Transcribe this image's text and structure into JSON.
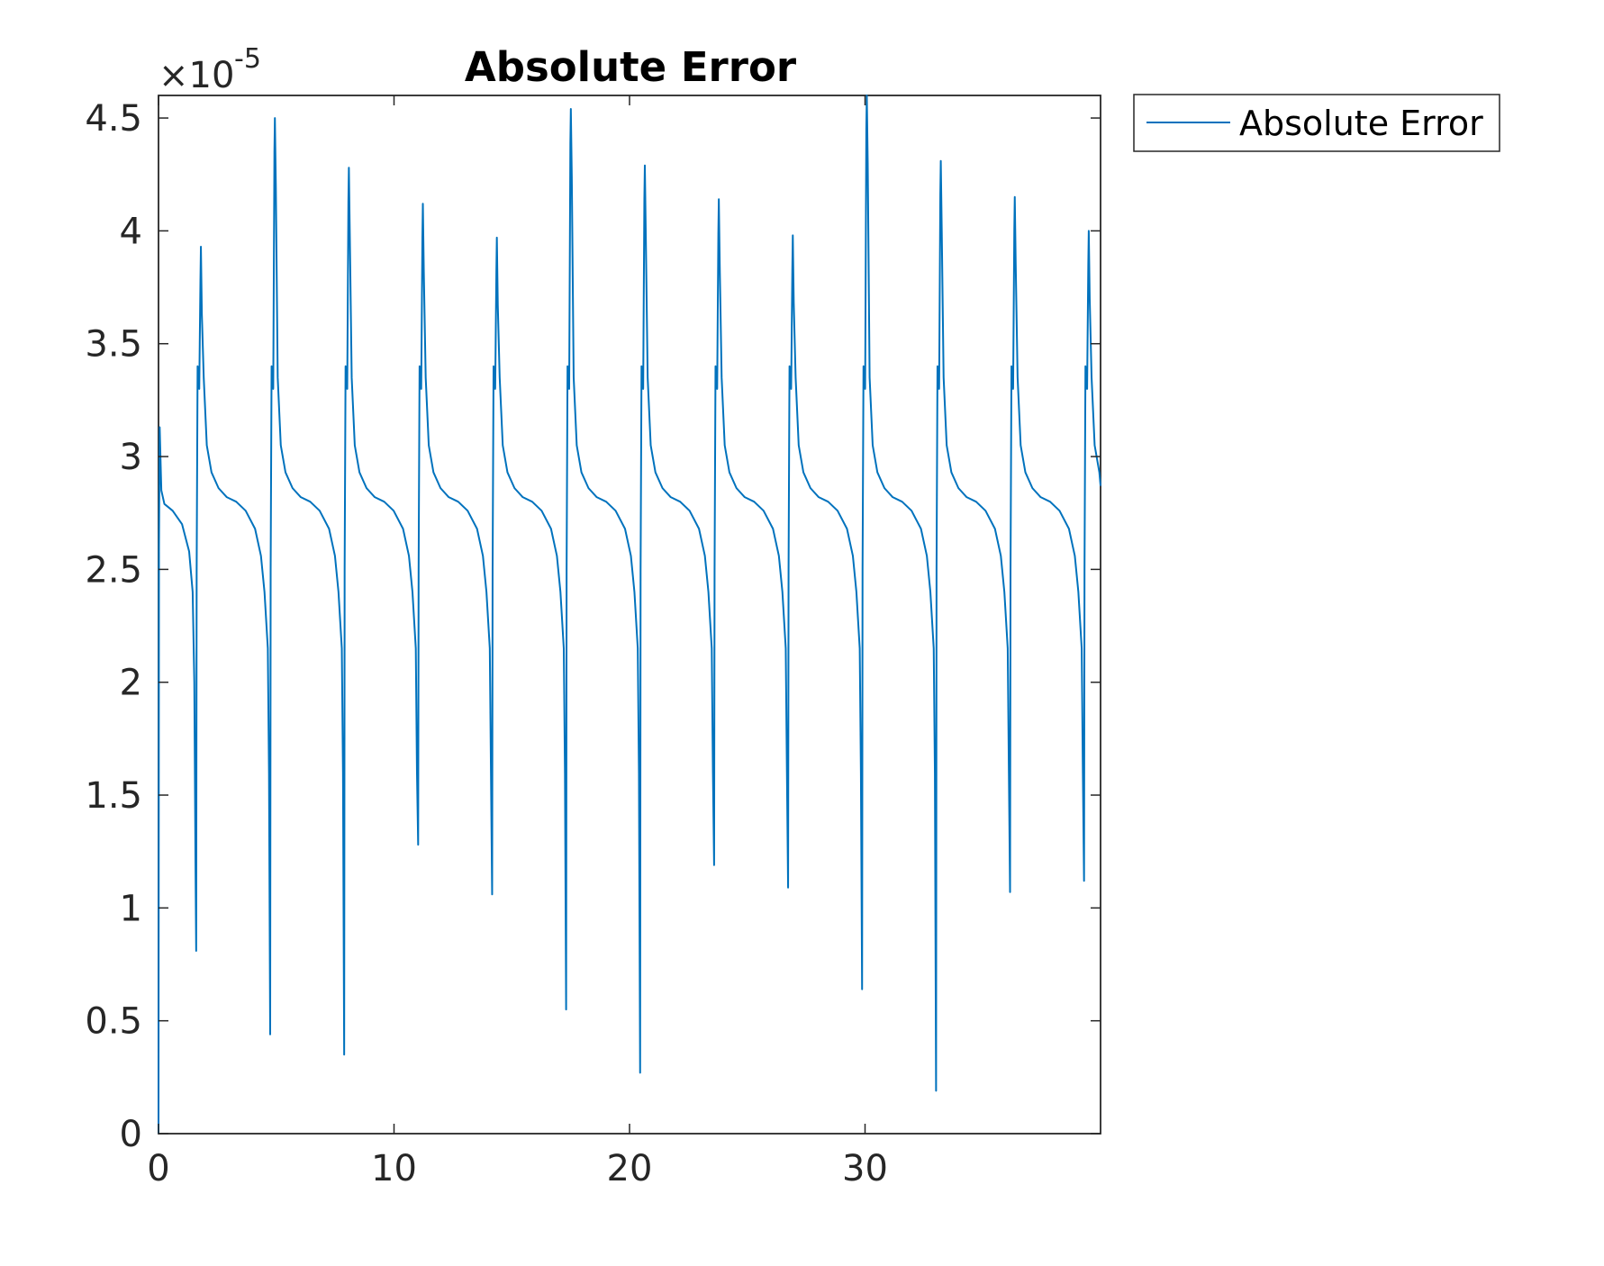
{
  "chart_data": {
    "type": "line",
    "title": "Absolute Error",
    "xlabel": "",
    "ylabel": "",
    "xlim": [
      0,
      40
    ],
    "ylim": [
      0,
      4.6
    ],
    "y_exponent_label": "×10",
    "y_exponent_power": "-5",
    "x_ticks": [
      0,
      10,
      20,
      30
    ],
    "x_tick_labels": [
      "0",
      "10",
      "20",
      "30"
    ],
    "y_ticks": [
      0,
      0.5,
      1,
      1.5,
      2,
      2.5,
      3,
      3.5,
      4,
      4.5
    ],
    "y_tick_labels": [
      "0",
      "0.5",
      "1",
      "1.5",
      "2",
      "2.5",
      "3",
      "3.5",
      "4",
      "4.5"
    ],
    "grid": false,
    "legend_position": "outside-top-right",
    "series": [
      {
        "name": "Absolute Error",
        "color": "#0072BD",
        "period": 3.1416,
        "first_peak_t": 1.8,
        "lows": [
          0.81,
          0.44,
          0.35,
          1.28,
          1.06,
          0.55,
          0.27,
          1.19,
          1.09,
          0.64,
          0.19,
          1.07,
          1.12
        ],
        "peaks": [
          3.93,
          4.5,
          4.28,
          4.12,
          3.97,
          4.54,
          4.29,
          4.14,
          3.98,
          4.6,
          4.31,
          4.15,
          4.0
        ],
        "plateau": 2.82,
        "start_value": 3.13,
        "end_value": 2.87
      }
    ]
  }
}
